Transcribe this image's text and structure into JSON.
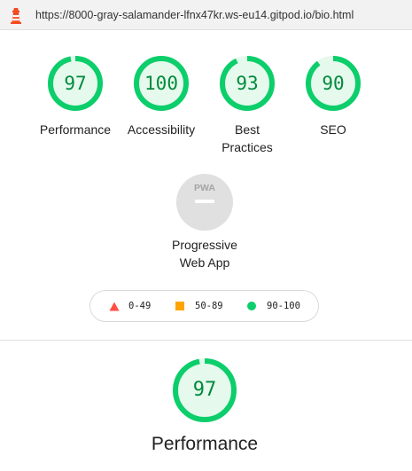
{
  "browser": {
    "url": "https://8000-gray-salamander-lfnx47kr.ws-eu14.gitpod.io/bio.html"
  },
  "colors": {
    "pass": "#0cce6b",
    "pass_text": "#008a3c",
    "average": "#ffa400",
    "fail": "#ff4e42",
    "pwa_grey": "#e0e0e0"
  },
  "scores": [
    {
      "value": "97",
      "score": 0.97,
      "label_line1": "Performance",
      "label_line2": ""
    },
    {
      "value": "100",
      "score": 1.0,
      "label_line1": "Accessibility",
      "label_line2": ""
    },
    {
      "value": "93",
      "score": 0.93,
      "label_line1": "Best",
      "label_line2": "Practices"
    },
    {
      "value": "90",
      "score": 0.9,
      "label_line1": "SEO",
      "label_line2": ""
    }
  ],
  "pwa": {
    "badge_text": "PWA",
    "label_line1": "Progressive",
    "label_line2": "Web App"
  },
  "legend": {
    "fail_range": "0-49",
    "average_range": "50-89",
    "pass_range": "90-100"
  },
  "detail": {
    "value": "97",
    "score": 0.97,
    "title": "Performance"
  }
}
